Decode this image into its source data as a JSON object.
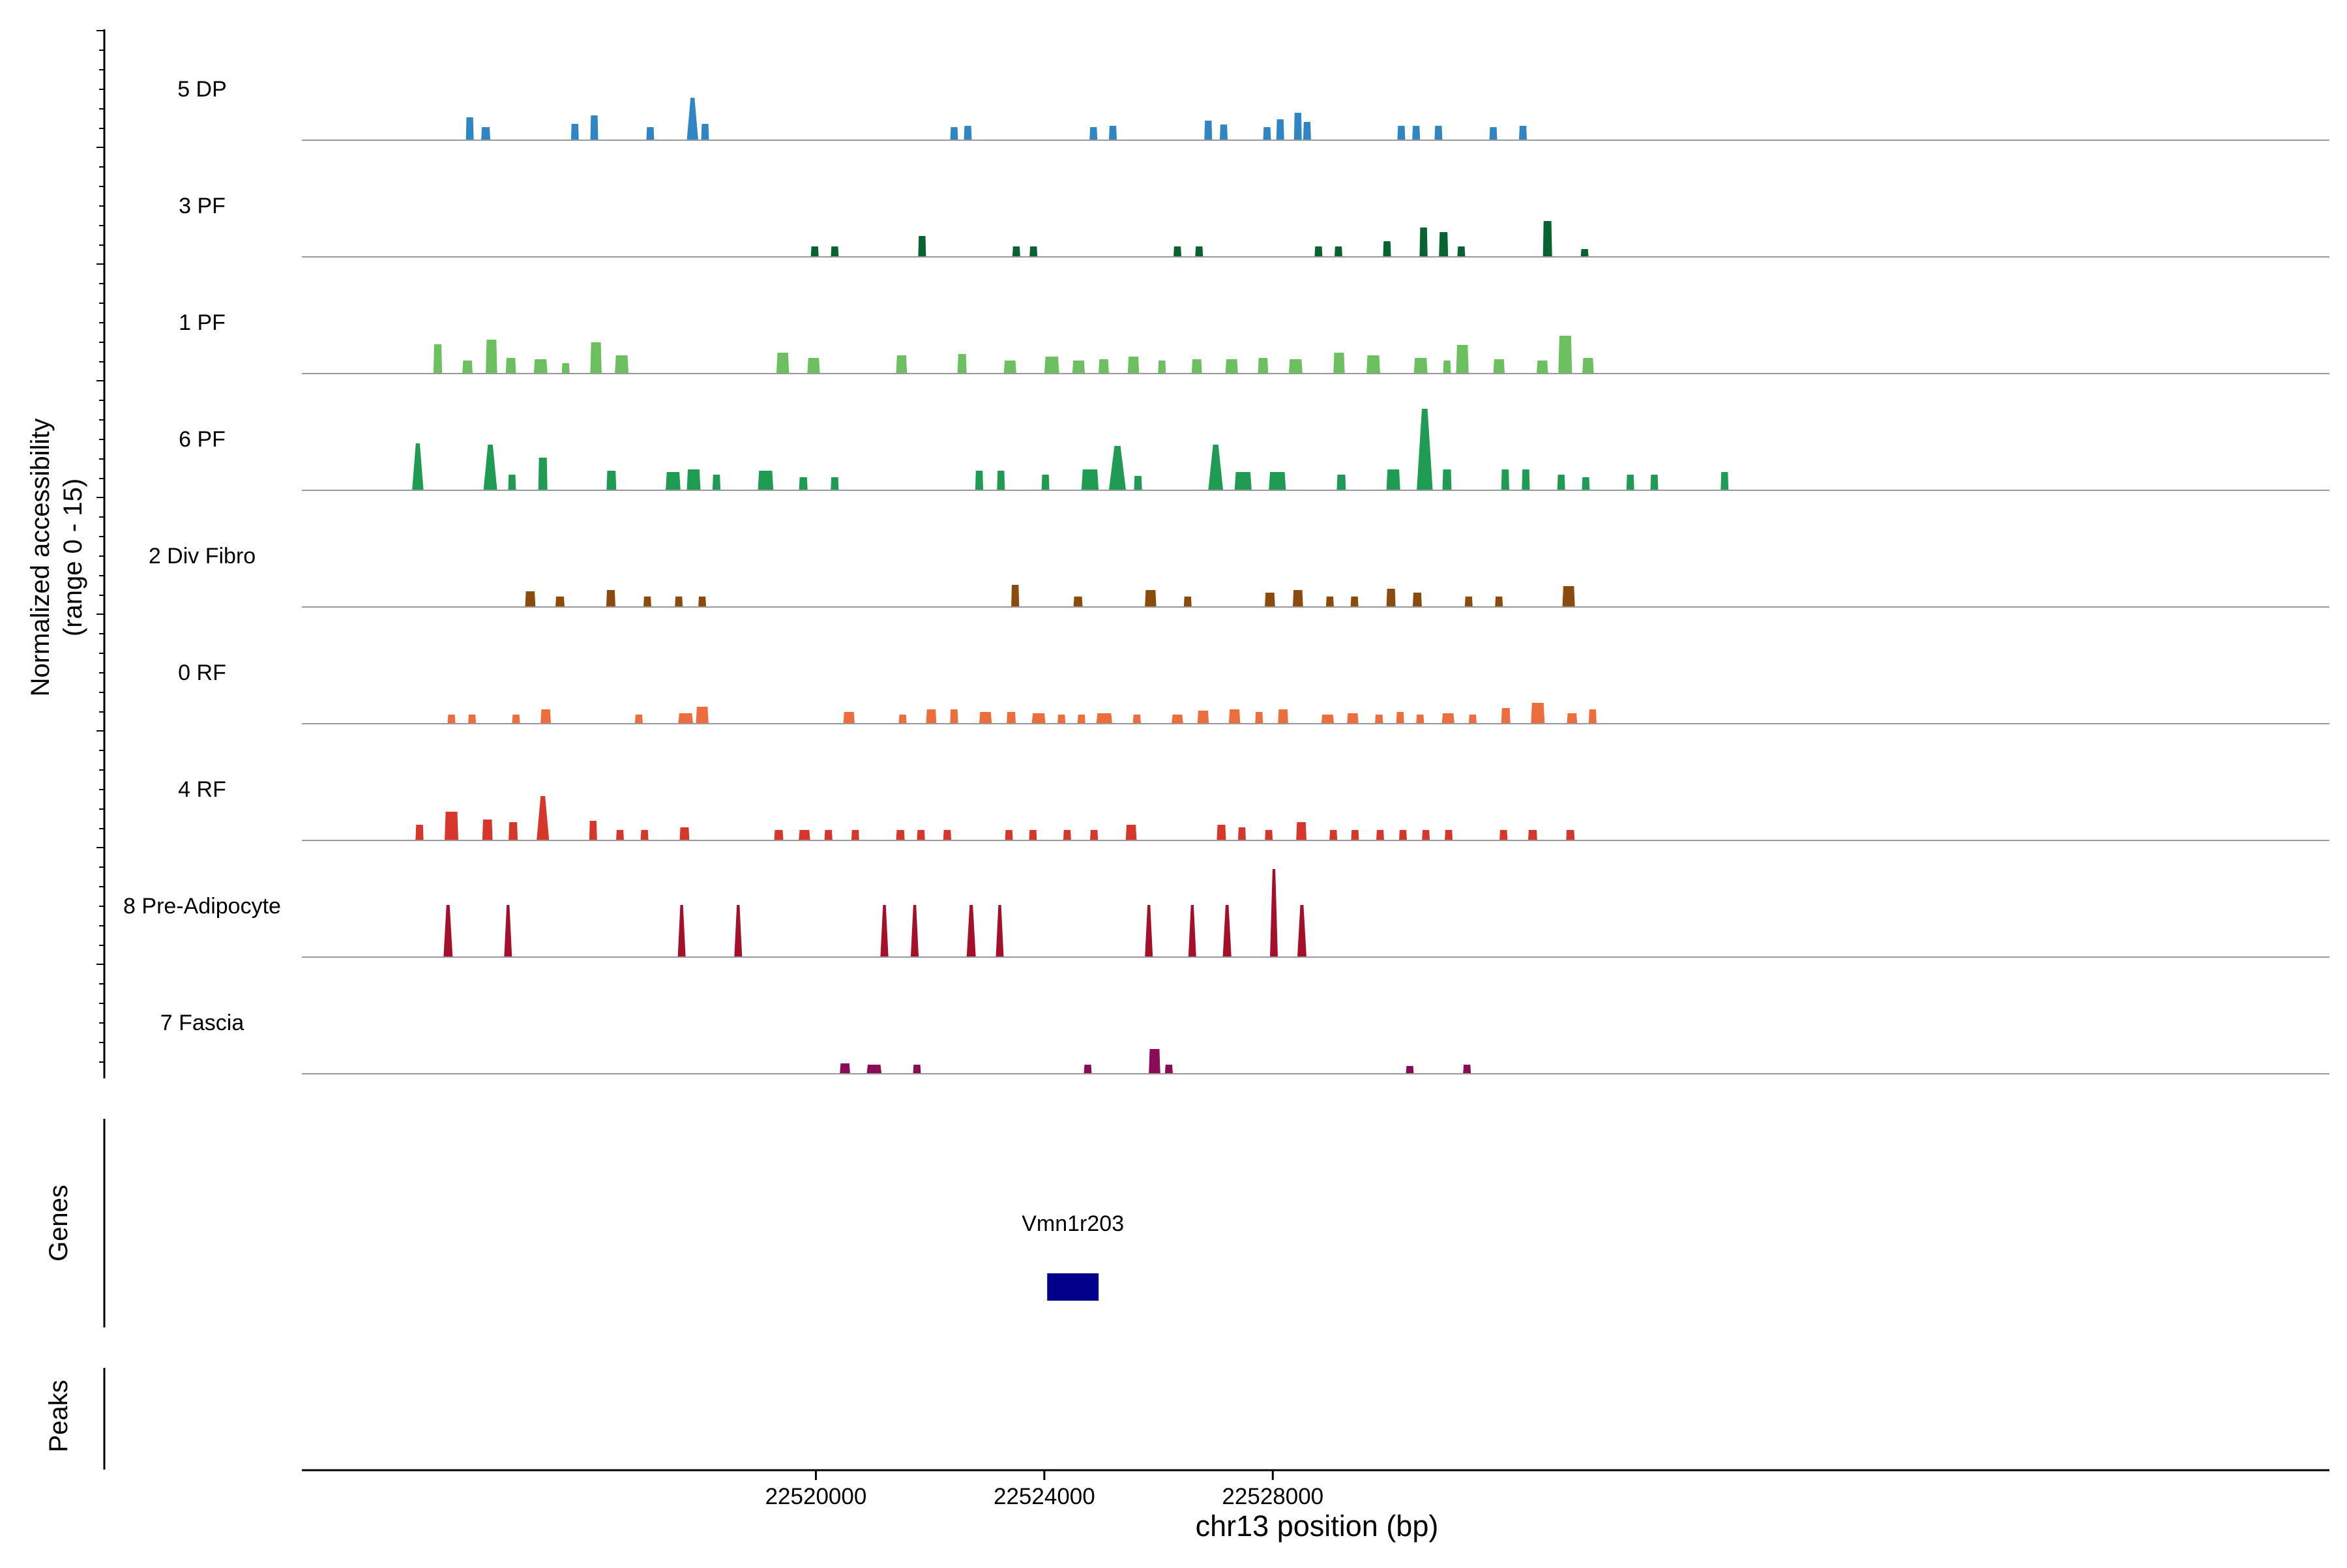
{
  "chart_data": {
    "type": "area",
    "xlabel": "chr13 position (bp)",
    "ylabel_line1": "Normalized accessibility",
    "ylabel_line2": "(range 0 - 15)",
    "xlim": [
      22511000,
      22546500
    ],
    "ylim": [
      0,
      15
    ],
    "x_ticks": [
      22520000,
      22524000,
      22528000
    ],
    "x_tick_labels": [
      "22520000",
      "22524000",
      "22528000"
    ],
    "series": [
      {
        "name": "5 DP",
        "color": "#2F86C2",
        "peaks": [
          [
            22513940,
            3.5,
            120
          ],
          [
            22514220,
            2.0,
            160
          ],
          [
            22515780,
            2.5,
            90
          ],
          [
            22516120,
            3.8,
            130
          ],
          [
            22517100,
            2.0,
            80
          ],
          [
            22517840,
            6.5,
            200
          ],
          [
            22518060,
            2.5,
            80
          ],
          [
            22522420,
            2.0,
            80
          ],
          [
            22522660,
            2.2,
            90
          ],
          [
            22524860,
            2.0,
            80
          ],
          [
            22525200,
            2.2,
            100
          ],
          [
            22526870,
            3.0,
            130
          ],
          [
            22527140,
            2.4,
            120
          ],
          [
            22527900,
            2.0,
            100
          ],
          [
            22528130,
            3.2,
            90
          ],
          [
            22528440,
            4.2,
            120
          ],
          [
            22528600,
            2.8,
            80
          ],
          [
            22530250,
            2.2,
            110
          ],
          [
            22530510,
            2.2,
            100
          ],
          [
            22530900,
            2.2,
            120
          ],
          [
            22531860,
            2.0,
            80
          ],
          [
            22532380,
            2.2,
            100
          ]
        ]
      },
      {
        "name": "3 PF",
        "color": "#076430",
        "peaks": [
          [
            22519980,
            1.6,
            120
          ],
          [
            22520330,
            1.6,
            100
          ],
          [
            22521860,
            3.2,
            110
          ],
          [
            22523510,
            1.6,
            100
          ],
          [
            22523810,
            1.6,
            90
          ],
          [
            22526330,
            1.6,
            100
          ],
          [
            22526710,
            1.6,
            90
          ],
          [
            22528800,
            1.6,
            90
          ],
          [
            22529150,
            1.6,
            80
          ],
          [
            22530000,
            2.4,
            140
          ],
          [
            22530640,
            4.5,
            140
          ],
          [
            22530990,
            3.8,
            160
          ],
          [
            22531300,
            1.6,
            90
          ],
          [
            22532810,
            5.5,
            160
          ],
          [
            22533460,
            1.2,
            90
          ]
        ]
      },
      {
        "name": "1 PF",
        "color": "#6CC05F",
        "peaks": [
          [
            22513380,
            4.5,
            150
          ],
          [
            22513900,
            2.0,
            180
          ],
          [
            22514320,
            5.2,
            200
          ],
          [
            22514660,
            2.4,
            180
          ],
          [
            22515180,
            2.2,
            240
          ],
          [
            22515620,
            1.6,
            100
          ],
          [
            22516150,
            4.8,
            200
          ],
          [
            22516600,
            2.8,
            240
          ],
          [
            22519420,
            3.2,
            220
          ],
          [
            22519960,
            2.4,
            220
          ],
          [
            22521500,
            2.8,
            190
          ],
          [
            22522560,
            3.0,
            160
          ],
          [
            22523400,
            2.0,
            220
          ],
          [
            22524130,
            2.6,
            260
          ],
          [
            22524600,
            2.0,
            220
          ],
          [
            22525040,
            2.2,
            180
          ],
          [
            22525560,
            2.6,
            200
          ],
          [
            22526060,
            2.0,
            120
          ],
          [
            22526670,
            2.2,
            180
          ],
          [
            22527280,
            2.2,
            220
          ],
          [
            22527830,
            2.4,
            180
          ],
          [
            22528400,
            2.2,
            240
          ],
          [
            22529160,
            3.2,
            200
          ],
          [
            22529760,
            2.8,
            240
          ],
          [
            22530590,
            2.4,
            240
          ],
          [
            22531050,
            2.0,
            80
          ],
          [
            22531320,
            4.4,
            220
          ],
          [
            22531960,
            2.2,
            200
          ],
          [
            22532720,
            2.0,
            200
          ],
          [
            22533120,
            5.8,
            240
          ],
          [
            22533520,
            2.4,
            200
          ]
        ]
      },
      {
        "name": "6 PF",
        "color": "#1F9B53",
        "peaks": [
          [
            22513030,
            7.2,
            200
          ],
          [
            22514300,
            7.0,
            240
          ],
          [
            22514680,
            2.4,
            80
          ],
          [
            22515220,
            5.0,
            160
          ],
          [
            22516420,
            3.0,
            170
          ],
          [
            22517500,
            2.8,
            260
          ],
          [
            22517860,
            3.2,
            240
          ],
          [
            22518260,
            2.4,
            140
          ],
          [
            22519120,
            3.0,
            270
          ],
          [
            22519780,
            2.0,
            150
          ],
          [
            22520330,
            2.0,
            140
          ],
          [
            22522860,
            3.0,
            140
          ],
          [
            22523240,
            3.0,
            120
          ],
          [
            22524020,
            2.4,
            120
          ],
          [
            22524800,
            3.2,
            300
          ],
          [
            22525280,
            6.8,
            300
          ],
          [
            22525640,
            2.2,
            140
          ],
          [
            22527000,
            7.0,
            260
          ],
          [
            22527480,
            2.8,
            300
          ],
          [
            22528080,
            2.8,
            300
          ],
          [
            22529200,
            2.4,
            160
          ],
          [
            22530110,
            3.2,
            240
          ],
          [
            22530660,
            12.5,
            280
          ],
          [
            22531050,
            3.2,
            160
          ],
          [
            22532070,
            3.2,
            140
          ],
          [
            22532430,
            3.2,
            140
          ],
          [
            22533050,
            2.4,
            110
          ],
          [
            22533480,
            2.0,
            110
          ],
          [
            22534260,
            2.4,
            110
          ],
          [
            22534680,
            2.4,
            110
          ],
          [
            22535910,
            2.8,
            100
          ]
        ]
      },
      {
        "name": "2 Div Fibro",
        "color": "#8B4B0C",
        "peaks": [
          [
            22515000,
            2.4,
            180
          ],
          [
            22515520,
            1.6,
            160
          ],
          [
            22516410,
            2.6,
            160
          ],
          [
            22517050,
            1.6,
            120
          ],
          [
            22517600,
            1.6,
            120
          ],
          [
            22518010,
            1.6,
            120
          ],
          [
            22523490,
            3.4,
            140
          ],
          [
            22524590,
            1.6,
            160
          ],
          [
            22525860,
            2.6,
            200
          ],
          [
            22526510,
            1.6,
            120
          ],
          [
            22527950,
            2.2,
            180
          ],
          [
            22528440,
            2.6,
            180
          ],
          [
            22529000,
            1.6,
            120
          ],
          [
            22529430,
            1.6,
            120
          ],
          [
            22530070,
            2.8,
            160
          ],
          [
            22530530,
            2.2,
            160
          ],
          [
            22531430,
            1.6,
            110
          ],
          [
            22531960,
            1.6,
            110
          ],
          [
            22533180,
            3.2,
            220
          ]
        ]
      },
      {
        "name": "0 RF",
        "color": "#EE6D3C",
        "peaks": [
          [
            22513620,
            1.4,
            90
          ],
          [
            22513980,
            1.4,
            120
          ],
          [
            22514750,
            1.4,
            120
          ],
          [
            22515270,
            2.2,
            180
          ],
          [
            22516900,
            1.4,
            100
          ],
          [
            22517720,
            1.6,
            260
          ],
          [
            22518010,
            2.6,
            220
          ],
          [
            22520580,
            1.8,
            200
          ],
          [
            22521520,
            1.4,
            130
          ],
          [
            22522020,
            2.2,
            180
          ],
          [
            22522420,
            2.2,
            140
          ],
          [
            22522970,
            1.8,
            220
          ],
          [
            22523420,
            1.8,
            160
          ],
          [
            22523900,
            1.6,
            240
          ],
          [
            22524300,
            1.4,
            120
          ],
          [
            22524650,
            1.4,
            120
          ],
          [
            22525050,
            1.6,
            280
          ],
          [
            22525620,
            1.4,
            140
          ],
          [
            22526330,
            1.4,
            200
          ],
          [
            22526780,
            2.0,
            200
          ],
          [
            22527330,
            2.2,
            200
          ],
          [
            22527760,
            1.8,
            120
          ],
          [
            22528180,
            2.2,
            180
          ],
          [
            22528960,
            1.4,
            220
          ],
          [
            22529400,
            1.6,
            200
          ],
          [
            22529860,
            1.4,
            140
          ],
          [
            22530230,
            1.8,
            120
          ],
          [
            22530580,
            1.4,
            120
          ],
          [
            22531070,
            1.6,
            220
          ],
          [
            22531500,
            1.4,
            120
          ],
          [
            22532080,
            2.4,
            160
          ],
          [
            22532640,
            3.2,
            240
          ],
          [
            22533240,
            1.6,
            180
          ],
          [
            22533600,
            2.2,
            120
          ]
        ]
      },
      {
        "name": "4 RF",
        "color": "#D7372B",
        "peaks": [
          [
            22513060,
            2.4,
            140
          ],
          [
            22513620,
            4.4,
            240
          ],
          [
            22514250,
            3.2,
            180
          ],
          [
            22514700,
            2.8,
            160
          ],
          [
            22515220,
            6.8,
            220
          ],
          [
            22516100,
            3.0,
            120
          ],
          [
            22516570,
            1.6,
            120
          ],
          [
            22517000,
            1.6,
            120
          ],
          [
            22517700,
            2.0,
            170
          ],
          [
            22519350,
            1.6,
            160
          ],
          [
            22519800,
            1.6,
            200
          ],
          [
            22520220,
            1.6,
            140
          ],
          [
            22520690,
            1.6,
            80
          ],
          [
            22521480,
            1.6,
            150
          ],
          [
            22521840,
            1.6,
            140
          ],
          [
            22522300,
            1.6,
            140
          ],
          [
            22523380,
            1.6,
            110
          ],
          [
            22523800,
            1.6,
            100
          ],
          [
            22524400,
            1.6,
            130
          ],
          [
            22524870,
            1.6,
            140
          ],
          [
            22525520,
            2.4,
            190
          ],
          [
            22527100,
            2.4,
            160
          ],
          [
            22527460,
            2.0,
            120
          ],
          [
            22527930,
            1.6,
            130
          ],
          [
            22528500,
            2.8,
            180
          ],
          [
            22529060,
            1.6,
            120
          ],
          [
            22529440,
            1.6,
            120
          ],
          [
            22529880,
            1.6,
            120
          ],
          [
            22530280,
            1.6,
            120
          ],
          [
            22530680,
            1.6,
            120
          ],
          [
            22531080,
            1.6,
            120
          ],
          [
            22532040,
            1.6,
            140
          ],
          [
            22532550,
            1.6,
            160
          ],
          [
            22533210,
            1.6,
            150
          ]
        ]
      },
      {
        "name": "8 Pre-Adipocyte",
        "color": "#A50F2A",
        "peaks": [
          [
            22513560,
            8.0,
            160
          ],
          [
            22514610,
            8.0,
            120
          ],
          [
            22517650,
            8.0,
            120
          ],
          [
            22518640,
            8.0,
            120
          ],
          [
            22521200,
            8.0,
            140
          ],
          [
            22521730,
            8.0,
            140
          ],
          [
            22522720,
            8.0,
            160
          ],
          [
            22523220,
            8.0,
            120
          ],
          [
            22525830,
            8.0,
            120
          ],
          [
            22526590,
            8.0,
            120
          ],
          [
            22527200,
            8.0,
            150
          ],
          [
            22528020,
            13.5,
            100
          ],
          [
            22528510,
            8.0,
            160
          ]
        ]
      },
      {
        "name": "7 Fascia",
        "color": "#8A0C57",
        "peaks": [
          [
            22520510,
            1.6,
            180
          ],
          [
            22521020,
            1.4,
            260
          ],
          [
            22521770,
            1.4,
            120
          ],
          [
            22524760,
            1.4,
            130
          ],
          [
            22525930,
            3.8,
            200
          ],
          [
            22526180,
            1.4,
            120
          ],
          [
            22530400,
            1.2,
            110
          ],
          [
            22531400,
            1.4,
            120
          ]
        ]
      }
    ],
    "genes": [
      {
        "name": "Vmn1r203",
        "start": 22524050,
        "end": 22524950,
        "color": "#00008B"
      }
    ],
    "panel_labels": {
      "genes": "Genes",
      "peaks": "Peaks"
    }
  }
}
